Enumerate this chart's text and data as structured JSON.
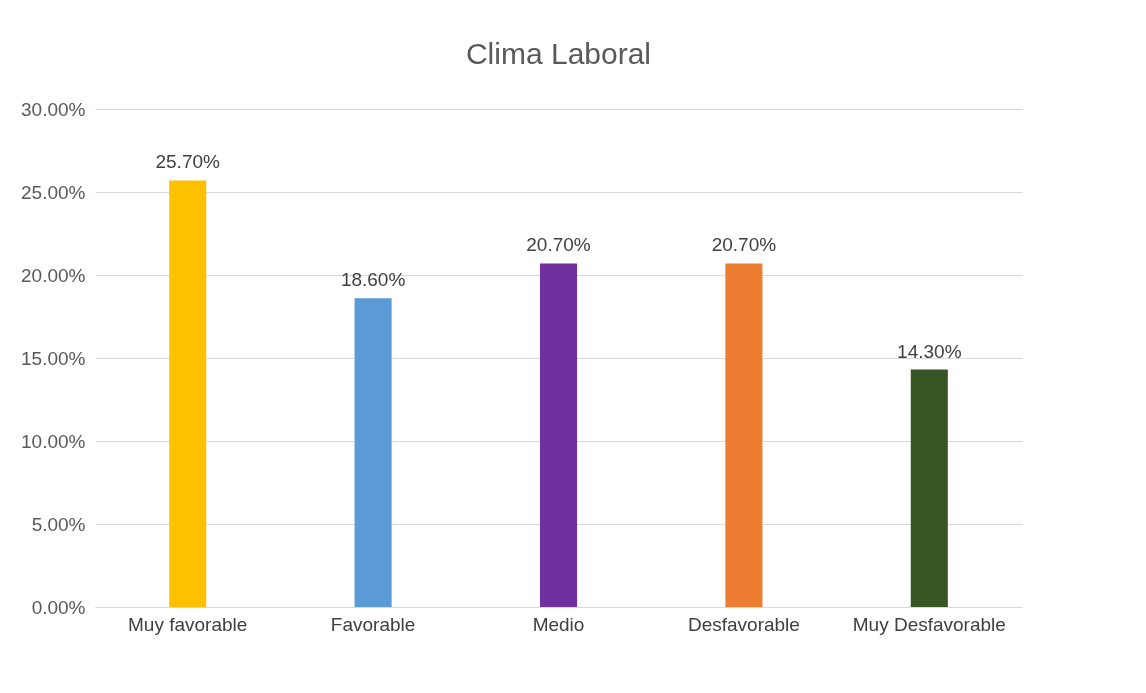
{
  "chart_data": {
    "type": "bar",
    "title": "Clima Laboral",
    "categories": [
      "Muy favorable",
      "Favorable",
      "Medio",
      "Desfavorable",
      "Muy Desfavorable"
    ],
    "values": [
      25.7,
      18.6,
      20.7,
      20.7,
      14.3
    ],
    "colors": [
      "#ffc000",
      "#5b9bd5",
      "#7030a0",
      "#ed7d31",
      "#375623"
    ],
    "value_labels": [
      "25.70%",
      "18.60%",
      "20.70%",
      "20.70%",
      "14.30%"
    ],
    "ylim": [
      0,
      30
    ],
    "yticks": [
      {
        "value": 0,
        "label": "0.00%"
      },
      {
        "value": 5,
        "label": "5.00%"
      },
      {
        "value": 10,
        "label": "10.00%"
      },
      {
        "value": 15,
        "label": "15.00%"
      },
      {
        "value": 20,
        "label": "20.00%"
      },
      {
        "value": 25,
        "label": "25.00%"
      },
      {
        "value": 30,
        "label": "30.00%"
      }
    ],
    "grid": "y",
    "legend": false
  }
}
